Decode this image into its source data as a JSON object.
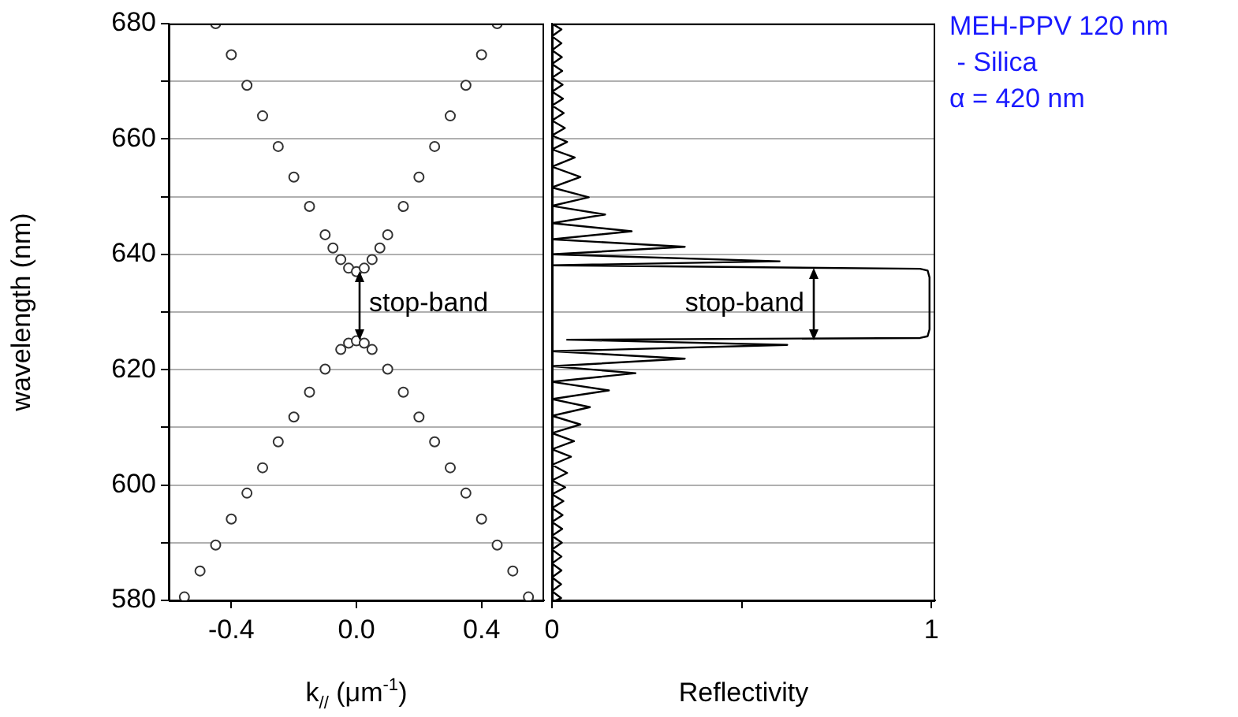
{
  "chart_data": [
    {
      "type": "scatter",
      "xlabel": "k$_{//}$ (μm$^{-1}$)",
      "ylabel": "wavelength (nm)",
      "marker": "circle",
      "grid": "y",
      "xlim": [
        -0.6,
        0.6
      ],
      "xticks": [
        -0.4,
        {
          "value": 0,
          "label": "0.0"
        },
        0.4
      ],
      "ylim": [
        580,
        680
      ],
      "yticks": [
        580,
        {
          "value": 590,
          "label": null
        },
        600,
        {
          "value": 610,
          "label": null
        },
        620,
        {
          "value": 630,
          "label": null
        },
        640,
        {
          "value": 650,
          "label": null
        },
        660,
        {
          "value": 670,
          "label": null
        },
        680
      ],
      "series": [
        {
          "color": "#333333",
          "x": [
            -0.45,
            -0.4,
            -0.35,
            -0.3,
            -0.25,
            -0.2,
            -0.15,
            -0.1,
            -0.075,
            -0.05,
            -0.025,
            0,
            0.025,
            0.05,
            0.075,
            0.1,
            0.15,
            0.2,
            0.25,
            0.3,
            0.35,
            0.4,
            0.45
          ],
          "values": [
            680,
            674.6,
            669.3,
            664,
            658.7,
            653.4,
            648.3,
            643.4,
            641.1,
            639.1,
            637.6,
            637,
            637.6,
            639.1,
            641.1,
            643.4,
            648.3,
            653.4,
            658.7,
            664,
            669.3,
            674.6,
            680
          ]
        },
        {
          "color": "#333333",
          "x": [
            -0.55,
            -0.5,
            -0.45,
            -0.4,
            -0.35,
            -0.3,
            -0.25,
            -0.2,
            -0.15,
            -0.1,
            -0.05,
            -0.025,
            0,
            0.025,
            0.05,
            0.1,
            0.15,
            0.2,
            0.25,
            0.3,
            0.35,
            0.4,
            0.45,
            0.5,
            0.55
          ],
          "values": [
            580.6,
            585.1,
            589.6,
            594.1,
            598.6,
            603,
            607.5,
            611.8,
            616.1,
            620.1,
            623.5,
            624.6,
            625,
            624.6,
            623.5,
            620.1,
            616.1,
            611.8,
            607.5,
            603,
            598.6,
            594.1,
            589.6,
            585.1,
            580.6
          ]
        }
      ],
      "annotations": [
        "stop-band"
      ]
    },
    {
      "type": "line",
      "xlabel": "Reflectivity",
      "marker": "none",
      "grid": "y",
      "tick_labels": "x",
      "xlim": [
        0,
        1.01
      ],
      "xticks": [
        0,
        {
          "value": 0.5,
          "label": null
        },
        1
      ],
      "ylim": [
        580,
        680
      ],
      "yticks": [
        580,
        590,
        600,
        610,
        620,
        630,
        640,
        650,
        660,
        670,
        680
      ],
      "series": [
        {
          "color": "#000000",
          "x": [
            0,
            0.025,
            0,
            0.025,
            0,
            0.026,
            0,
            0.027,
            0,
            0.028,
            0,
            0.029,
            0,
            0.031,
            0,
            0.034,
            0,
            0.04,
            0,
            0.06,
            0,
            0.075,
            0,
            0.097,
            0,
            0.14,
            0,
            0.21,
            0,
            0.35,
            0,
            0.6,
            0,
            0.97,
            0.99,
            0.995,
            0.995,
            0.99,
            0.97,
            0.04,
            0.62,
            0,
            0.35,
            0,
            0.22,
            0,
            0.15,
            0,
            0.1,
            0,
            0.075,
            0,
            0.058,
            0,
            0.05,
            0,
            0.04,
            0,
            0.035,
            0,
            0.03,
            0,
            0.028,
            0,
            0.027,
            0,
            0.026,
            0,
            0.025,
            0,
            0.025,
            0,
            0.024,
            0,
            0.024,
            0.01
          ],
          "values": [
            680,
            679,
            677.8,
            676.6,
            675.4,
            674.2,
            673,
            671.8,
            670.6,
            669.4,
            668.2,
            667,
            665.8,
            664.5,
            663.2,
            661.9,
            660.6,
            659.5,
            658.2,
            656.8,
            655.2,
            653.4,
            651.6,
            649.9,
            648.4,
            646.9,
            645.4,
            644,
            642.6,
            641.3,
            640,
            638.8,
            638.1,
            637.5,
            637.2,
            636,
            627,
            625.8,
            625.5,
            625.2,
            624.3,
            623.2,
            621.9,
            620.6,
            619.4,
            617.9,
            616.4,
            614.9,
            613.5,
            612,
            610.5,
            609,
            607.6,
            606.2,
            604.9,
            603.5,
            602.1,
            600.8,
            599.6,
            598.4,
            597.2,
            596,
            594.8,
            593.6,
            592.4,
            591.2,
            590,
            588.8,
            587.6,
            586.4,
            585.2,
            584,
            582.8,
            581.6,
            580.4,
            580
          ]
        }
      ],
      "annotations": [
        "stop-band",
        "MEH-PPV 120 nm",
        " - Silica",
        "α = 420 nm"
      ]
    }
  ]
}
